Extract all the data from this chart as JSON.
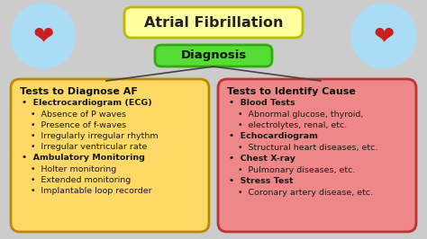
{
  "title": "Atrial Fibrillation",
  "title_box_color": "#FFFFA0",
  "title_border_color": "#BBBB00",
  "diagnosis_label": "Diagnosis",
  "diagnosis_box_color": "#55DD33",
  "diagnosis_border_color": "#33AA11",
  "background_color": "#CCCCCC",
  "left_box_color": "#FFD966",
  "left_box_border": "#BB8800",
  "right_box_color": "#EE8888",
  "right_box_border": "#BB3333",
  "left_title": "Tests to Diagnose AF",
  "right_title": "Tests to Identify Cause",
  "heart_circle_color": "#AADDF5",
  "left_content": [
    {
      "level": 1,
      "bold": true,
      "text": "Electrocardiogram (ECG)"
    },
    {
      "level": 2,
      "bold": false,
      "text": "Absence of P waves"
    },
    {
      "level": 2,
      "bold": false,
      "text": "Presence of f-waves"
    },
    {
      "level": 2,
      "bold": false,
      "text": "Irregularly irregular rhythm"
    },
    {
      "level": 2,
      "bold": false,
      "text": "Irregular ventricular rate"
    },
    {
      "level": 1,
      "bold": true,
      "text": "Ambulatory Monitoring"
    },
    {
      "level": 2,
      "bold": false,
      "text": "Holter monitoring"
    },
    {
      "level": 2,
      "bold": false,
      "text": "Extended monitoring"
    },
    {
      "level": 2,
      "bold": false,
      "text": "Implantable loop recorder"
    }
  ],
  "right_content": [
    {
      "level": 1,
      "bold": true,
      "text": "Blood Tests"
    },
    {
      "level": 2,
      "bold": false,
      "text": "Abnormal glucose, thyroid,"
    },
    {
      "level": 2,
      "bold": false,
      "text": "electrolytes, renal, etc."
    },
    {
      "level": 1,
      "bold": true,
      "text": "Echocardiogram"
    },
    {
      "level": 2,
      "bold": false,
      "text": "Structural heart diseases, etc."
    },
    {
      "level": 1,
      "bold": true,
      "text": "Chest X-ray"
    },
    {
      "level": 2,
      "bold": false,
      "text": "Pulmonary diseases, etc."
    },
    {
      "level": 1,
      "bold": true,
      "text": "Stress Test"
    },
    {
      "level": 2,
      "bold": false,
      "text": "Coronary artery disease, etc."
    }
  ]
}
